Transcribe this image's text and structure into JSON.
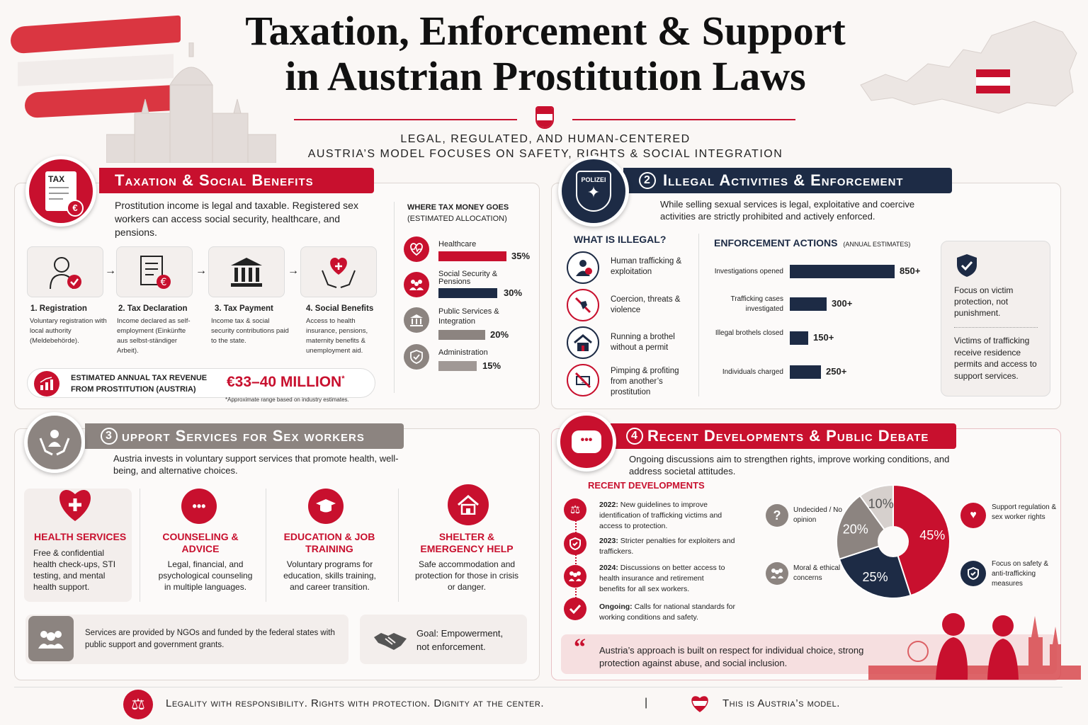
{
  "header": {
    "title_line1": "Taxation, Enforcement & Support",
    "title_line2": "in Austrian Prostitution Laws",
    "subtitle_line1": "LEGAL, REGULATED, AND HUMAN-CENTERED",
    "subtitle_line2": "AUSTRIA’S MODEL FOCUSES ON SAFETY, RIGHTS & SOCIAL INTEGRATION"
  },
  "colors": {
    "accent": "#c8102e",
    "navy": "#1d2b45",
    "gray": "#8c8480"
  },
  "taxation": {
    "badge_text": "TAX",
    "title": "Taxation & Social Benefits",
    "intro": "Prostitution income is legal and taxable. Registered sex workers can access social security, healthcare, and pensions.",
    "steps": [
      {
        "title": "1. Registration",
        "desc": "Voluntary registration with local authority (Meldebehörde).",
        "icon": "person-check-icon"
      },
      {
        "title": "2. Tax Declaration",
        "desc": "Income declared as self-employment (Einkünfte aus selbst-ständiger Arbeit).",
        "icon": "document-euro-icon"
      },
      {
        "title": "3. Tax Payment",
        "desc": "Income tax & social security contributions paid to the state.",
        "icon": "bank-icon"
      },
      {
        "title": "4. Social Benefits",
        "desc": "Access to health insurance, pensions, maternity benefits & unemployment aid.",
        "icon": "hands-heart-icon"
      }
    ],
    "revenue_label": "ESTIMATED ANNUAL TAX REVENUE FROM PROSTITUTION (AUSTRIA)",
    "revenue_value": "€33–40 MILLION",
    "revenue_star": "*",
    "revenue_note": "*Approximate range based on industry estimates.",
    "allocation_title": "WHERE TAX MONEY GOES",
    "allocation_sub": "(ESTIMATED ALLOCATION)",
    "allocation": [
      {
        "label": "Healthcare",
        "value": 35,
        "value_text": "35%",
        "color": "#c8102e"
      },
      {
        "label": "Social Security & Pensions",
        "value": 30,
        "value_text": "30%",
        "color": "#1d2b45"
      },
      {
        "label": "Public Services & Integration",
        "value": 20,
        "value_text": "20%",
        "color": "#8c8480"
      },
      {
        "label": "Administration",
        "value": 15,
        "value_text": "15%",
        "color": "#a09895"
      }
    ]
  },
  "enforcement": {
    "number": "2",
    "badge_text": "POLIZEI",
    "title": "Illegal Activities & Enforcement",
    "intro": "While selling sexual services is legal, exploitative and coercive activities are strictly prohibited and actively enforced.",
    "illegal_title": "WHAT IS ILLEGAL?",
    "illegal": [
      {
        "label": "Human trafficking & exploitation",
        "icon": "trafficking-icon"
      },
      {
        "label": "Coercion, threats & violence",
        "icon": "no-violence-icon"
      },
      {
        "label": "Running a brothel without a permit",
        "icon": "house-icon"
      },
      {
        "label": "Pimping & profiting from another’s prostitution",
        "icon": "no-money-icon"
      }
    ],
    "actions_title": "ENFORCEMENT ACTIONS",
    "actions_sub": "(ANNUAL ESTIMATES)",
    "actions": [
      {
        "label": "Investigations opened",
        "value": 850,
        "value_text": "850+"
      },
      {
        "label": "Trafficking cases investigated",
        "value": 300,
        "value_text": "300+"
      },
      {
        "label": "Illegal brothels closed",
        "value": 150,
        "value_text": "150+"
      },
      {
        "label": "Individuals charged",
        "value": 250,
        "value_text": "250+"
      }
    ],
    "side_note1": "Focus on victim protection, not punishment.",
    "side_note2": "Victims of trafficking receive residence permits and access to support services."
  },
  "support": {
    "number": "3",
    "title": "upport Services for Sex workers",
    "intro": "Austria invests in voluntary support services that promote health, well-being, and alternative choices.",
    "cards": [
      {
        "title": "HEALTH SERVICES",
        "desc": "Free & confidential health check-ups, STI testing, and mental health support.",
        "icon": "heart-cross-icon"
      },
      {
        "title": "COUNSELING & ADVICE",
        "desc": "Legal, financial, and psychological counseling in multiple languages.",
        "icon": "speech-bubble-icon"
      },
      {
        "title": "EDUCATION & JOB TRAINING",
        "desc": "Voluntary programs for education, skills training, and career transition.",
        "icon": "graduation-cap-icon"
      },
      {
        "title": "SHELTER & EMERGENCY HELP",
        "desc": "Safe accommodation and protection for those in crisis or danger.",
        "icon": "home-icon"
      }
    ],
    "ngo_note": "Services are provided by NGOs and funded by the federal states with public support and government grants.",
    "goal": "Goal: Empowerment, not enforcement."
  },
  "developments": {
    "number": "4",
    "title": "Recent Developments & Public Debate",
    "intro": "Ongoing discussions aim to strengthen rights, improve working conditions, and address societal attitudes.",
    "recent_title": "RECENT DEVELOPMENTS",
    "items": [
      {
        "year": "2022:",
        "text": "New guidelines to improve identification of trafficking victims and access to protection.",
        "icon": "scales-icon"
      },
      {
        "year": "2023:",
        "text": "Stricter penalties for exploiters and traffickers.",
        "icon": "shield-icon"
      },
      {
        "year": "2024:",
        "text": "Discussions on better access to health insurance and retirement benefits for all sex workers.",
        "icon": "group-icon"
      },
      {
        "year": "Ongoing:",
        "text": "Calls for national standards for working conditions and safety.",
        "icon": "check-icon"
      }
    ],
    "chart_data": {
      "type": "pie",
      "values": [
        {
          "label": "Support regulation & sex worker rights",
          "value": 45,
          "color": "#c8102e"
        },
        {
          "label": "Focus on safety & anti-trafficking measures",
          "value": 25,
          "color": "#1d2b45"
        },
        {
          "label": "Moral & ethical concerns",
          "value": 20,
          "color": "#8c8480"
        },
        {
          "label": "Undecided / No opinion",
          "value": 10,
          "color": "#d6d0cd"
        }
      ],
      "value_labels": [
        "45%",
        "25%",
        "20%",
        "10%"
      ],
      "legend": [
        "Undecided / No opinion",
        "Moral & ethical concerns",
        "Support regulation & sex worker rights",
        "Focus on safety & anti-trafficking measures"
      ]
    },
    "quote": "Austria’s approach is built on respect for individual choice, strong protection against abuse, and social inclusion."
  },
  "footer": {
    "left": "Legality with responsibility. Rights with protection. Dignity at the center.",
    "right": "This is Austria’s model."
  }
}
